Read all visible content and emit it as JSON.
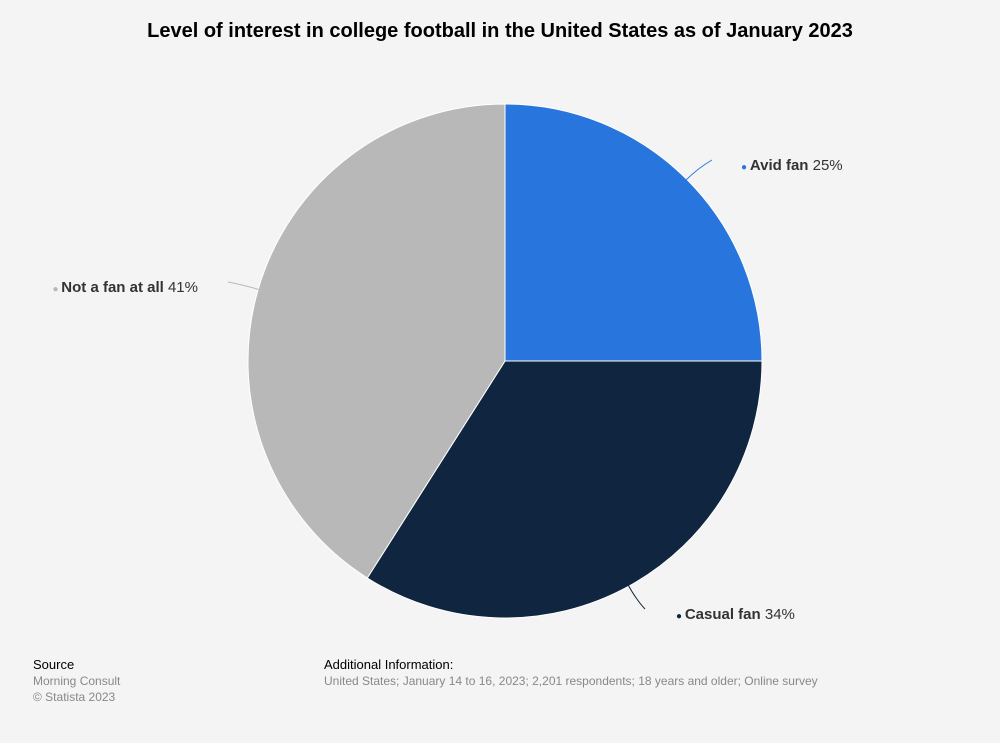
{
  "chart_data": {
    "type": "pie",
    "title": "Level of interest in college football in the United States as of January 2023",
    "slices": [
      {
        "label": "Avid fan",
        "value": 25,
        "value_label": "25%",
        "color": "#2876dd"
      },
      {
        "label": "Casual fan",
        "value": 34,
        "value_label": "34%",
        "color": "#10253f"
      },
      {
        "label": "Not a fan at all",
        "value": 41,
        "value_label": "41%",
        "color": "#b8b8b8"
      }
    ],
    "legend": "none",
    "data_labels": "outside with leader lines"
  },
  "footer": {
    "source_heading": "Source",
    "source_lines": [
      "Morning Consult",
      "© Statista 2023"
    ],
    "additional_heading": "Additional Information:",
    "additional_text": "United States; January 14 to 16, 2023; 2,201 respondents; 18 years and older; Online survey"
  },
  "colors": {
    "background": "#f4f4f4",
    "title": "#000000",
    "footer_muted": "#888888"
  }
}
